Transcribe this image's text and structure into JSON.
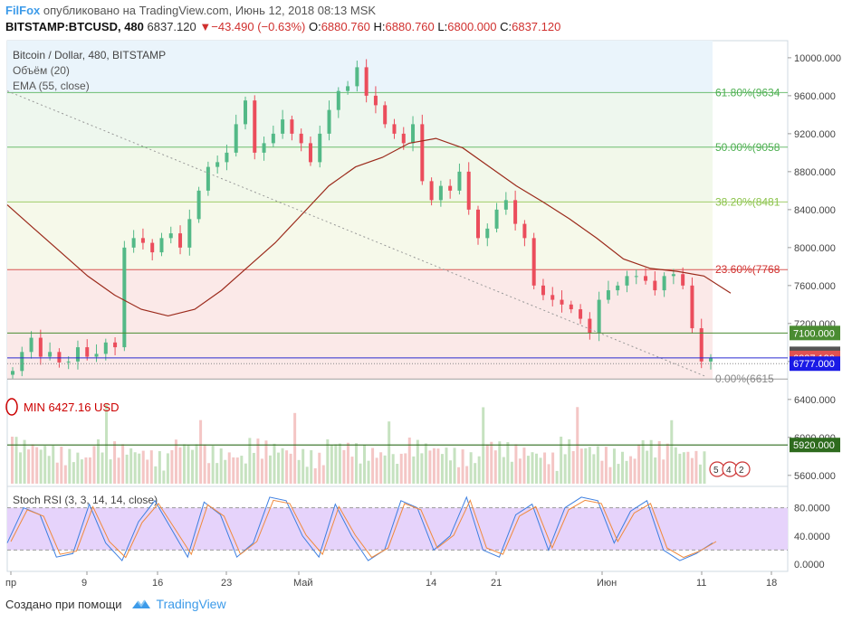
{
  "header": {
    "brand": "FilFox",
    "published": "опубликовано на TradingView.com, Июнь 12, 2018 08:13 MSK",
    "symbol": "BITSTAMP:BTCUSD, 480",
    "last": "6837.120",
    "arrow": "▼",
    "change": "−43.490 (−0.63%)",
    "o_label": "O:",
    "o": "6880.760",
    "h_label": "H:",
    "h": "6880.760",
    "l_label": "L:",
    "l": "6800.000",
    "c_label": "C:",
    "c": "6837.120"
  },
  "legend": {
    "title": "Bitcoin / Dollar, 480, BITSTAMP",
    "volume": "Объём (20)",
    "ema": "EMA (55, close)"
  },
  "fib_levels": [
    {
      "label": "61.80%(9634",
      "value": 9634,
      "color": "#4caf50"
    },
    {
      "label": "50.00%(9058",
      "value": 9058,
      "color": "#4caf50"
    },
    {
      "label": "38.20%(8481",
      "value": 8481,
      "color": "#8bc34a"
    },
    {
      "label": "23.60%(7768",
      "value": 7768,
      "color": "#d0302e"
    },
    {
      "label": "0.00%(6615",
      "value": 6615,
      "color": "#888888"
    }
  ],
  "price_tags": [
    {
      "text": "7100.000",
      "value": 7100,
      "bg": "#4a8c32"
    },
    {
      "text": "6880.610",
      "value": 6880.61,
      "bg": "#555555"
    },
    {
      "text": "6837.120",
      "value": 6837.12,
      "bg": "#e05252"
    },
    {
      "text": "6777.000",
      "value": 6777,
      "bg": "#1a1ae6"
    },
    {
      "text": "5920.000",
      "value": 5920,
      "bg": "#2e6b1e"
    }
  ],
  "min_label": "MIN 6427.16 USD",
  "events": {
    "a": "5",
    "b": "4",
    "c": "2"
  },
  "stoch": {
    "title": "Stoch RSI (3, 3, 14, 14, close)",
    "ticks": [
      "80.0000",
      "40.0000",
      "0.0000"
    ]
  },
  "footer": {
    "created": "Создано при помощи",
    "brand": "TradingView"
  },
  "chart_data": {
    "type": "candlestick",
    "symbol": "BITSTAMP:BTCUSD",
    "interval": "480",
    "x_ticks": [
      "пр",
      "9",
      "16",
      "23",
      "Май",
      "14",
      "21",
      "Июн",
      "11",
      "18"
    ],
    "y_ticks": [
      10000,
      9600,
      9200,
      8800,
      8400,
      8000,
      7600,
      7200,
      6800,
      6400,
      6000,
      5600
    ],
    "ylim": [
      5560,
      10180
    ],
    "close_path": [
      6700,
      6900,
      7050,
      6850,
      6900,
      6790,
      6800,
      6950,
      6850,
      6880,
      7000,
      6950,
      8000,
      8100,
      8050,
      7950,
      8100,
      8150,
      8000,
      8300,
      8600,
      8850,
      8900,
      9000,
      9300,
      9550,
      9000,
      9100,
      9200,
      9350,
      9200,
      9100,
      8900,
      9200,
      9450,
      9650,
      9700,
      9900,
      9600,
      9500,
      9300,
      9200,
      9100,
      9300,
      8700,
      8500,
      8650,
      8600,
      8800,
      8400,
      8100,
      8200,
      8400,
      8500,
      8250,
      8100,
      7600,
      7500,
      7450,
      7400,
      7350,
      7250,
      7100,
      7450,
      7550,
      7600,
      7700,
      7700,
      7650,
      7550,
      7700,
      7720,
      7600,
      7150,
      6800,
      6837
    ],
    "ema55_path": [
      8450,
      8200,
      7950,
      7700,
      7500,
      7350,
      7280,
      7350,
      7550,
      7800,
      8050,
      8350,
      8650,
      8850,
      8950,
      9100,
      9150,
      9050,
      8850,
      8650,
      8480,
      8300,
      8100,
      7880,
      7780,
      7750,
      7700,
      7520
    ],
    "trendline": {
      "from": [
        8,
        9650
      ],
      "to": [
        780,
        6640
      ]
    },
    "min": 6427.16,
    "last": 6837.12,
    "stoch_rsi": {
      "k": [
        30,
        80,
        70,
        10,
        15,
        85,
        30,
        5,
        60,
        90,
        50,
        10,
        88,
        70,
        10,
        30,
        95,
        90,
        40,
        10,
        85,
        40,
        5,
        20,
        90,
        80,
        20,
        40,
        95,
        20,
        10,
        70,
        85,
        20,
        80,
        95,
        90,
        30,
        75,
        90,
        20,
        5,
        15,
        30
      ],
      "levels": [
        80,
        20
      ]
    }
  }
}
